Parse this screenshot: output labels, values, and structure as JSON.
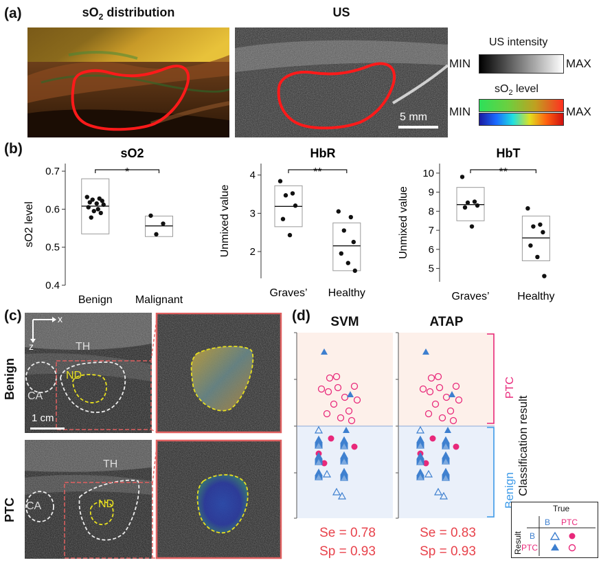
{
  "panel_a": {
    "letter": "(a)",
    "left_title_main": "sO",
    "left_title_sub": "2",
    "left_title_rest": " distribution",
    "right_title": "US",
    "scale_bar": "5 mm",
    "us_bar": {
      "title": "US intensity",
      "min": "MIN",
      "max": "MAX"
    },
    "so2_bar": {
      "title_main": "sO",
      "title_sub": "2",
      "title_rest": " level",
      "min": "MIN",
      "max": "MAX"
    },
    "colors": {
      "roi": "#ff1a1a"
    }
  },
  "panel_b": {
    "letter": "(b)",
    "chart_data": [
      {
        "type": "scatter",
        "title": "sO2",
        "ylabel": "sO2 level",
        "ylim": [
          0.4,
          0.72
        ],
        "yticks": [
          "0.4",
          "0.5",
          "0.6",
          "0.7"
        ],
        "ytick_values": [
          0.4,
          0.5,
          0.6,
          0.7
        ],
        "categories": [
          "Benign",
          "Malignant"
        ],
        "significance": "*",
        "groups": [
          {
            "name": "Benign",
            "points": [
              0.632,
              0.628,
              0.625,
              0.622,
              0.618,
              0.615,
              0.612,
              0.605,
              0.6,
              0.595,
              0.59,
              0.578
            ],
            "box": [
              0.535,
              0.68
            ],
            "median": 0.608
          },
          {
            "name": "Malignant",
            "points": [
              0.583,
              0.562,
              0.534
            ],
            "box": [
              0.528,
              0.582
            ],
            "median": 0.556
          }
        ]
      },
      {
        "type": "scatter",
        "title": "HbR",
        "ylabel": "Unmixed value",
        "ylim": [
          1.3,
          4.3
        ],
        "yticks": [
          "2",
          "3",
          "4"
        ],
        "ytick_values": [
          2,
          3,
          4
        ],
        "categories": [
          "Graves’",
          "Healthy"
        ],
        "significance": "**",
        "groups": [
          {
            "name": "Graves’",
            "points": [
              3.84,
              3.52,
              3.47,
              3.2,
              2.85,
              2.43
            ],
            "box": [
              2.65,
              3.72
            ],
            "median": 3.18
          },
          {
            "name": "Healthy",
            "points": [
              3.05,
              2.9,
              2.55,
              2.25,
              1.95,
              1.7,
              1.5
            ],
            "box": [
              1.5,
              2.75
            ],
            "median": 2.15
          }
        ]
      },
      {
        "type": "scatter",
        "title": "HbT",
        "ylabel": "Unmixed value",
        "ylim": [
          4.3,
          10.5
        ],
        "yticks": [
          "5",
          "6",
          "7",
          "8",
          "9",
          "10"
        ],
        "ytick_values": [
          5,
          6,
          7,
          8,
          9,
          10
        ],
        "categories": [
          "Graves’",
          "Healthy"
        ],
        "significance": "**",
        "groups": [
          {
            "name": "Graves’",
            "points": [
              9.8,
              8.5,
              8.45,
              8.3,
              8.2,
              7.2
            ],
            "box": [
              7.5,
              9.25
            ],
            "median": 8.35
          },
          {
            "name": "Healthy",
            "points": [
              8.15,
              7.3,
              7.2,
              6.9,
              6.2,
              5.6,
              4.6
            ],
            "box": [
              5.4,
              7.75
            ],
            "median": 6.6
          }
        ]
      }
    ]
  },
  "panel_c": {
    "letter": "(c)",
    "row_labels": [
      "Benign",
      "PTC"
    ],
    "axis_x": "x",
    "axis_z": "z",
    "scale_bar": "1 cm",
    "labels": {
      "th": "TH",
      "ca": "CA",
      "nd": "ND"
    }
  },
  "panel_d": {
    "letter": "(d)",
    "classifiers": [
      {
        "title": "SVM",
        "se": "Se = 0.78",
        "sp": "Sp = 0.93"
      },
      {
        "title": "ATAP",
        "se": "Se = 0.83",
        "sp": "Sp = 0.93"
      }
    ],
    "bracket_ptc": "PTC",
    "bracket_benign": "Benign",
    "axis_label": "Classification result",
    "legend": {
      "true": "True",
      "result": "Result",
      "b": "B",
      "ptc": "PTC"
    },
    "colors": {
      "ptc": "#e8287a",
      "benign": "#3d7fcf",
      "ptc_bg": "#fdf0ea",
      "benign_bg": "#eaf0fa"
    }
  }
}
